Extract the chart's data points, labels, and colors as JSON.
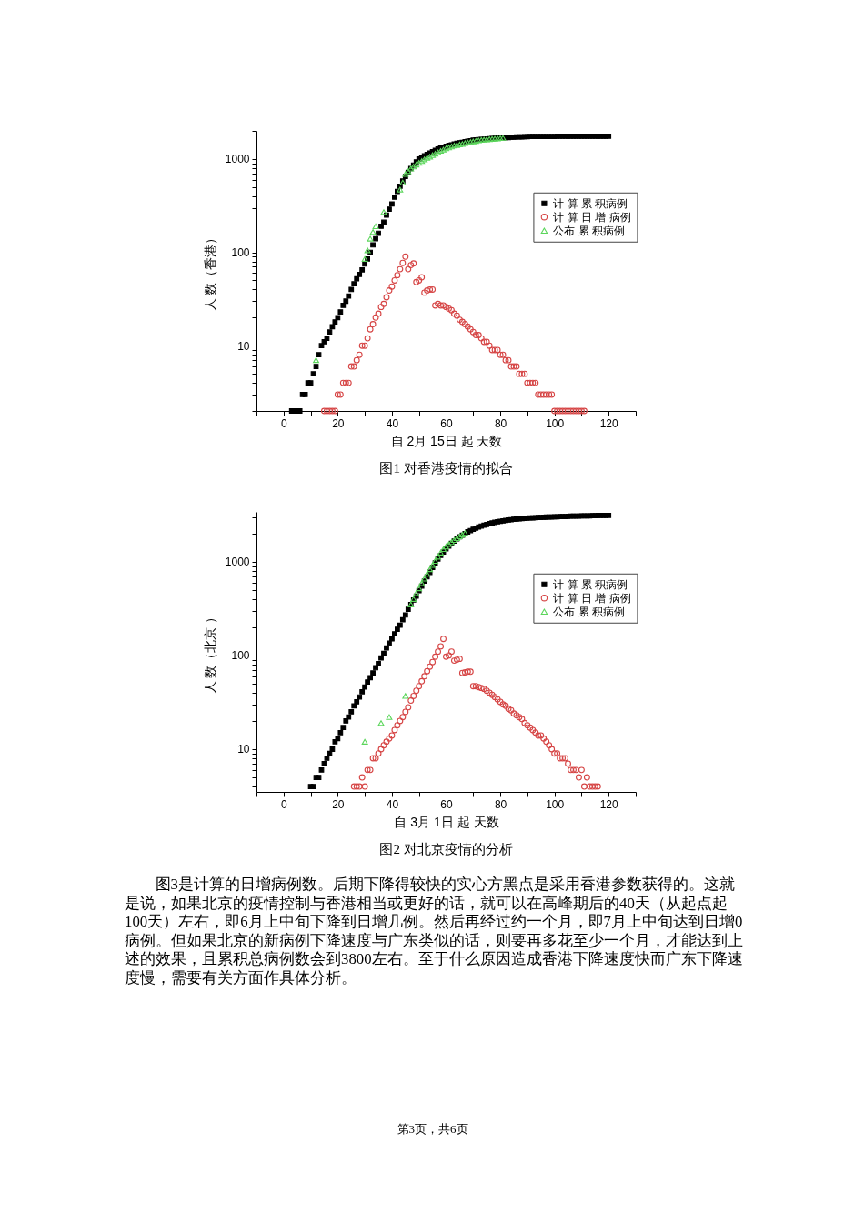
{
  "chart_data": [
    {
      "type": "scatter",
      "title": "图1 对香港疫情的拟合",
      "xlabel": "自 2月 15日 起 天数",
      "ylabel": "人 数（香港）",
      "log": "y",
      "legend": "top right",
      "xlim": [
        -10,
        130
      ],
      "xticks": [
        {
          "value": -10,
          "label": null
        },
        0,
        {
          "value": 10,
          "label": null
        },
        20,
        {
          "value": 30,
          "label": null
        },
        40,
        {
          "value": 50,
          "label": null
        },
        60,
        {
          "value": 70,
          "label": null
        },
        80,
        {
          "value": 90,
          "label": null
        },
        100,
        {
          "value": 110,
          "label": null
        },
        120,
        {
          "value": 130,
          "label": null
        }
      ],
      "ylim": [
        2,
        2000
      ],
      "yticks": [
        {
          "value": 2,
          "label": null
        },
        {
          "value": 3,
          "label": null
        },
        {
          "value": 4,
          "label": null
        },
        {
          "value": 5,
          "label": null
        },
        {
          "value": 6,
          "label": null
        },
        {
          "value": 7,
          "label": null
        },
        {
          "value": 8,
          "label": null
        },
        {
          "value": 9,
          "label": null
        },
        10,
        {
          "value": 20,
          "label": null
        },
        {
          "value": 30,
          "label": null
        },
        {
          "value": 40,
          "label": null
        },
        {
          "value": 50,
          "label": null
        },
        {
          "value": 60,
          "label": null
        },
        {
          "value": 70,
          "label": null
        },
        {
          "value": 80,
          "label": null
        },
        {
          "value": 90,
          "label": null
        },
        100,
        {
          "value": 200,
          "label": null
        },
        {
          "value": 300,
          "label": null
        },
        {
          "value": 400,
          "label": null
        },
        {
          "value": 500,
          "label": null
        },
        {
          "value": 600,
          "label": null
        },
        {
          "value": 700,
          "label": null
        },
        {
          "value": 800,
          "label": null
        },
        {
          "value": 900,
          "label": null
        },
        1000,
        {
          "value": 2000,
          "label": null
        }
      ],
      "series": [
        {
          "name": "计 算 累 积病例",
          "color": "#000000",
          "marker": "square",
          "x": [
            3,
            4,
            5,
            6,
            7,
            8,
            9,
            10,
            11,
            12,
            13,
            14,
            15,
            16,
            17,
            18,
            19,
            20,
            21,
            22,
            23,
            24,
            25,
            26,
            27,
            28,
            29,
            30,
            31,
            32,
            33,
            34,
            35,
            36,
            37,
            38,
            39,
            40,
            41,
            42,
            43,
            44,
            45,
            46,
            47,
            48,
            49,
            50,
            51,
            52,
            53,
            54,
            55,
            56,
            57,
            58,
            59,
            60,
            61,
            62,
            63,
            64,
            65,
            66,
            67,
            68,
            69,
            70,
            71,
            72,
            73,
            74,
            75,
            76,
            77,
            78,
            79,
            80,
            81,
            82,
            83,
            84,
            85,
            86,
            87,
            88,
            89,
            90,
            91,
            92,
            93,
            94,
            95,
            96,
            97,
            98,
            99,
            100,
            101,
            102,
            103,
            104,
            105,
            106,
            107,
            108,
            109,
            110,
            111,
            112,
            113,
            114,
            115,
            116,
            117,
            118,
            119,
            120
          ],
          "values": [
            2,
            2,
            2,
            2,
            3,
            3,
            4,
            4,
            5,
            6,
            8,
            10,
            11,
            12,
            14,
            16,
            18,
            20,
            23,
            27,
            30,
            34,
            40,
            46,
            52,
            58,
            65,
            75,
            85,
            100,
            120,
            140,
            160,
            190,
            210,
            250,
            290,
            330,
            390,
            450,
            510,
            580,
            650,
            720,
            790,
            860,
            930,
            1000,
            1040,
            1080,
            1120,
            1160,
            1200,
            1240,
            1280,
            1310,
            1340,
            1370,
            1400,
            1420,
            1450,
            1470,
            1490,
            1510,
            1530,
            1550,
            1570,
            1590,
            1600,
            1610,
            1620,
            1630,
            1640,
            1650,
            1660,
            1670,
            1680,
            1690,
            1690,
            1700,
            1700,
            1710,
            1710,
            1720,
            1720,
            1720,
            1730,
            1730,
            1740,
            1740,
            1740,
            1740,
            1740,
            1740,
            1740,
            1740,
            1740,
            1740,
            1750,
            1750,
            1750,
            1750,
            1750,
            1750,
            1750,
            1750,
            1750,
            1750,
            1750,
            1750,
            1750,
            1750,
            1750,
            1750,
            1750,
            1750,
            1750,
            1750
          ]
        },
        {
          "name": "计 算 日 增 病例",
          "color": "#d64545",
          "marker": "circle",
          "x": [
            15,
            16,
            17,
            18,
            19,
            20,
            21,
            22,
            23,
            24,
            25,
            26,
            27,
            28,
            29,
            30,
            31,
            32,
            33,
            34,
            35,
            36,
            37,
            38,
            39,
            40,
            41,
            42,
            43,
            44,
            45,
            46,
            47,
            48,
            49,
            50,
            51,
            52,
            53,
            54,
            55,
            56,
            57,
            58,
            59,
            60,
            61,
            62,
            63,
            64,
            65,
            66,
            67,
            68,
            69,
            70,
            71,
            72,
            73,
            74,
            75,
            76,
            77,
            78,
            79,
            80,
            81,
            82,
            83,
            84,
            85,
            86,
            87,
            88,
            89,
            90,
            91,
            92,
            93,
            94,
            95,
            96,
            97,
            98,
            99,
            100,
            101,
            102,
            103,
            104,
            105,
            106,
            107,
            108,
            109,
            110,
            111
          ],
          "values": [
            2,
            2,
            2,
            2,
            2,
            3,
            3,
            4,
            4,
            4,
            6,
            6,
            7,
            8,
            10,
            10,
            12,
            15,
            17,
            20,
            22,
            26,
            28,
            33,
            39,
            43,
            50,
            57,
            66,
            77,
            90,
            66,
            73,
            76,
            48,
            50,
            54,
            37,
            39,
            40,
            40,
            27,
            28,
            27,
            27,
            26,
            25,
            24,
            22,
            21,
            19,
            18,
            17,
            16,
            15,
            14,
            13,
            13,
            12,
            11,
            11,
            10,
            9,
            9,
            9,
            8,
            8,
            7,
            7,
            6,
            6,
            6,
            5,
            5,
            5,
            4,
            4,
            4,
            4,
            3,
            3,
            3,
            3,
            3,
            3,
            2,
            2,
            2,
            2,
            2,
            2,
            2,
            2,
            2,
            2,
            2,
            2
          ]
        },
        {
          "name": "公布 累 积病例",
          "color": "#5cd65c",
          "marker": "triangle",
          "x": [
            12,
            30,
            31,
            32,
            33,
            34,
            37,
            43,
            44,
            45,
            46,
            47,
            48,
            49,
            50,
            51,
            52,
            53,
            54,
            55,
            56,
            57,
            58,
            59,
            60,
            61,
            62,
            63,
            64,
            65,
            66,
            67,
            68,
            69,
            70,
            71,
            72,
            73,
            74,
            75,
            76,
            77,
            78,
            79,
            80,
            81
          ],
          "values": [
            7,
            85,
            105,
            140,
            165,
            190,
            270,
            470,
            560,
            690,
            740,
            790,
            830,
            870,
            910,
            950,
            990,
            1030,
            1060,
            1100,
            1140,
            1180,
            1220,
            1260,
            1300,
            1330,
            1360,
            1390,
            1410,
            1430,
            1450,
            1480,
            1500,
            1520,
            1540,
            1560,
            1580,
            1600,
            1610,
            1620,
            1630,
            1640,
            1650,
            1660,
            1670,
            1680
          ]
        }
      ]
    },
    {
      "type": "scatter",
      "title": "图2 对北京疫情的分析",
      "xlabel": "自 3月 1日 起 天数",
      "ylabel": "人 数（北京 ）",
      "log": "y",
      "legend": "top right",
      "xlim": [
        -10,
        130
      ],
      "xticks": [
        {
          "value": -10,
          "label": null
        },
        0,
        {
          "value": 10,
          "label": null
        },
        20,
        {
          "value": 30,
          "label": null
        },
        40,
        {
          "value": 50,
          "label": null
        },
        60,
        {
          "value": 70,
          "label": null
        },
        80,
        {
          "value": 90,
          "label": null
        },
        100,
        {
          "value": 110,
          "label": null
        },
        120,
        {
          "value": 130,
          "label": null
        }
      ],
      "ylim": [
        3.5,
        3400
      ],
      "yticks": [
        {
          "value": 4,
          "label": null
        },
        {
          "value": 5,
          "label": null
        },
        {
          "value": 6,
          "label": null
        },
        {
          "value": 7,
          "label": null
        },
        {
          "value": 8,
          "label": null
        },
        {
          "value": 9,
          "label": null
        },
        10,
        {
          "value": 20,
          "label": null
        },
        {
          "value": 30,
          "label": null
        },
        {
          "value": 40,
          "label": null
        },
        {
          "value": 50,
          "label": null
        },
        {
          "value": 60,
          "label": null
        },
        {
          "value": 70,
          "label": null
        },
        {
          "value": 80,
          "label": null
        },
        {
          "value": 90,
          "label": null
        },
        100,
        {
          "value": 200,
          "label": null
        },
        {
          "value": 300,
          "label": null
        },
        {
          "value": 400,
          "label": null
        },
        {
          "value": 500,
          "label": null
        },
        {
          "value": 600,
          "label": null
        },
        {
          "value": 700,
          "label": null
        },
        {
          "value": 800,
          "label": null
        },
        {
          "value": 900,
          "label": null
        },
        1000,
        {
          "value": 2000,
          "label": null
        },
        {
          "value": 3000,
          "label": null
        }
      ],
      "series": [
        {
          "name": "计 算 累 积病例",
          "color": "#000000",
          "marker": "square",
          "x": [
            10,
            11,
            12,
            13,
            14,
            15,
            16,
            17,
            18,
            19,
            20,
            21,
            22,
            23,
            24,
            25,
            26,
            27,
            28,
            29,
            30,
            31,
            32,
            33,
            34,
            35,
            36,
            37,
            38,
            39,
            40,
            41,
            42,
            43,
            44,
            45,
            46,
            47,
            48,
            49,
            50,
            51,
            52,
            53,
            54,
            55,
            56,
            57,
            58,
            59,
            60,
            61,
            62,
            63,
            64,
            65,
            66,
            67,
            68,
            69,
            70,
            71,
            72,
            73,
            74,
            75,
            76,
            77,
            78,
            79,
            80,
            81,
            82,
            83,
            84,
            85,
            86,
            87,
            88,
            89,
            90,
            91,
            92,
            93,
            94,
            95,
            96,
            97,
            98,
            99,
            100,
            101,
            102,
            103,
            104,
            105,
            106,
            107,
            108,
            109,
            110,
            111,
            112,
            113,
            114,
            115,
            116,
            117,
            118,
            119,
            120
          ],
          "values": [
            4,
            4,
            5,
            5,
            6,
            7,
            8,
            9,
            10,
            12,
            13,
            15,
            17,
            20,
            22,
            25,
            29,
            32,
            36,
            41,
            46,
            52,
            58,
            65,
            74,
            82,
            94,
            105,
            120,
            135,
            150,
            170,
            190,
            210,
            240,
            270,
            310,
            350,
            390,
            430,
            490,
            550,
            620,
            690,
            770,
            870,
            970,
            1070,
            1170,
            1270,
            1370,
            1470,
            1570,
            1660,
            1750,
            1840,
            1920,
            2000,
            2080,
            2150,
            2220,
            2280,
            2340,
            2400,
            2450,
            2500,
            2550,
            2590,
            2630,
            2670,
            2700,
            2730,
            2760,
            2790,
            2810,
            2830,
            2850,
            2870,
            2890,
            2900,
            2920,
            2930,
            2940,
            2950,
            2960,
            2970,
            2980,
            2990,
            3000,
            3000,
            3010,
            3020,
            3030,
            3040,
            3040,
            3050,
            3060,
            3060,
            3070,
            3070,
            3080,
            3080,
            3090,
            3090,
            3100,
            3100,
            3110,
            3110,
            3120,
            3120,
            3120
          ]
        },
        {
          "name": "计 算 日 增 病例",
          "color": "#d64545",
          "marker": "circle",
          "x": [
            26,
            27,
            28,
            29,
            30,
            31,
            32,
            33,
            34,
            35,
            36,
            37,
            38,
            39,
            40,
            41,
            42,
            43,
            44,
            45,
            46,
            47,
            48,
            49,
            50,
            51,
            52,
            53,
            54,
            55,
            56,
            57,
            58,
            59,
            60,
            61,
            62,
            63,
            64,
            65,
            66,
            67,
            68,
            69,
            70,
            71,
            72,
            73,
            74,
            75,
            76,
            77,
            78,
            79,
            80,
            81,
            82,
            83,
            84,
            85,
            86,
            87,
            88,
            89,
            90,
            91,
            92,
            93,
            94,
            95,
            96,
            97,
            98,
            99,
            100,
            101,
            102,
            103,
            104,
            105,
            106,
            107,
            108,
            109,
            110,
            111,
            112,
            113,
            114,
            115,
            116
          ],
          "values": [
            4,
            4,
            4,
            5,
            4,
            6,
            6,
            8,
            8,
            9,
            10,
            11,
            12,
            13,
            14,
            16,
            18,
            20,
            22,
            25,
            28,
            33,
            37,
            42,
            47,
            53,
            60,
            68,
            76,
            85,
            97,
            110,
            125,
            150,
            97,
            100,
            110,
            88,
            90,
            92,
            65,
            66,
            67,
            67,
            47,
            47,
            46,
            45,
            44,
            42,
            40,
            38,
            36,
            34,
            32,
            30,
            29,
            27,
            26,
            24,
            23,
            22,
            21,
            19,
            18,
            17,
            16,
            15,
            14,
            14,
            13,
            12,
            11,
            10,
            9,
            9,
            8,
            8,
            8,
            7,
            6,
            6,
            6,
            5,
            6,
            4,
            5,
            4,
            4,
            4,
            4
          ]
        },
        {
          "name": "公布 累 积病例",
          "color": "#5cd65c",
          "marker": "triangle",
          "x": [
            30,
            36,
            39,
            45,
            47,
            48,
            49,
            50,
            51,
            52,
            53,
            54,
            55,
            56,
            57,
            58,
            59,
            60,
            61,
            62,
            63,
            64,
            65,
            66,
            67
          ],
          "values": [
            12,
            19,
            22,
            37,
            350,
            400,
            460,
            520,
            590,
            660,
            740,
            830,
            920,
            1020,
            1130,
            1250,
            1360,
            1450,
            1540,
            1620,
            1700,
            1780,
            1860,
            1940,
            2020
          ]
        }
      ],
      "annotations": [
        "图3是计算的日增病例数。后期下降得较快的实心方黑点是采用香港参数获得的。这就是说，如果北京的疫情控制与香港相当或更好的话，就可以在高峰期后的40天（从起点起100天）左右，即6月上中旬下降到日增几例。然后再经过约一个月，即7月上中旬达到日增0病例。但如果北京的新病例下降速度与广东类似的话，则要再多花至少一个月，才能达到上述的效果，且累积总病例数会到3800左右。至于什么原因造成香港下降速度快而广东下降速度慢，需要有关方面作具体分析。",
        "第3页，共6页"
      ]
    }
  ]
}
